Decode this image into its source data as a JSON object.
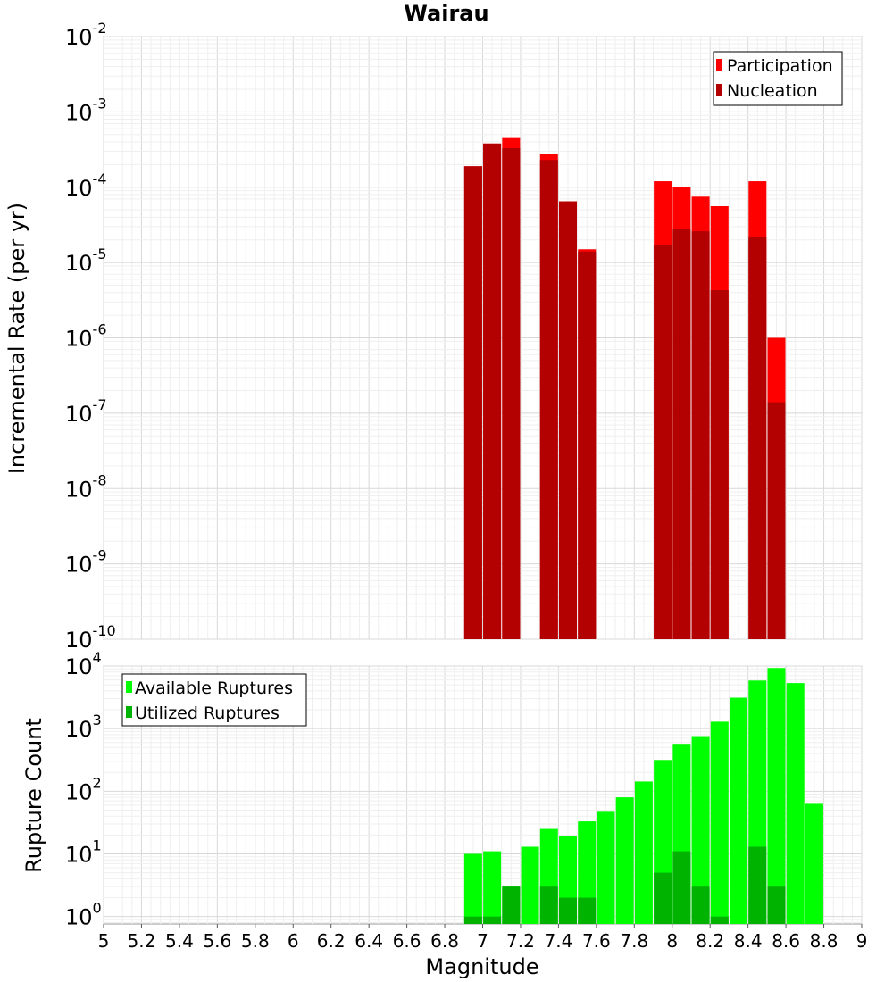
{
  "chart_data": [
    {
      "type": "bar",
      "title": "Wairau",
      "xlabel": "",
      "ylabel": "Incremental Rate (per yr)",
      "yscale": "log",
      "ylim": [
        1e-10,
        0.01
      ],
      "y_ticks": [
        {
          "base": "10",
          "exp": "-10"
        },
        {
          "base": "10",
          "exp": "-9"
        },
        {
          "base": "10",
          "exp": "-8"
        },
        {
          "base": "10",
          "exp": "-7"
        },
        {
          "base": "10",
          "exp": "-6"
        },
        {
          "base": "10",
          "exp": "-5"
        },
        {
          "base": "10",
          "exp": "-4"
        },
        {
          "base": "10",
          "exp": "-3"
        },
        {
          "base": "10",
          "exp": "-2"
        }
      ],
      "xlim": [
        5,
        9
      ],
      "grid": true,
      "legend_position": "top-right",
      "series": [
        {
          "name": "Participation",
          "color": "#ff0000",
          "x": [
            6.95,
            7.05,
            7.15,
            7.35,
            7.45,
            7.55,
            7.95,
            8.05,
            8.15,
            8.25,
            8.45,
            8.55
          ],
          "values": [
            0.00019,
            0.00038,
            0.00045,
            0.00028,
            6.5e-05,
            1.5e-05,
            0.00012,
            0.0001,
            7.5e-05,
            5.6e-05,
            0.00012,
            1e-06
          ]
        },
        {
          "name": "Nucleation",
          "color": "#b30000",
          "x": [
            6.95,
            7.05,
            7.15,
            7.35,
            7.45,
            7.55,
            7.95,
            8.05,
            8.15,
            8.25,
            8.45,
            8.55
          ],
          "values": [
            0.00019,
            0.00038,
            0.00033,
            0.00023,
            6.5e-05,
            1.4e-05,
            1.7e-05,
            2.8e-05,
            2.6e-05,
            4.3e-06,
            2.2e-05,
            1.4e-07
          ]
        }
      ]
    },
    {
      "type": "bar",
      "title": "",
      "xlabel": "Magnitude",
      "ylabel": "Rupture Count",
      "yscale": "log",
      "ylim": [
        0.76,
        10000
      ],
      "y_ticks": [
        {
          "base": "10",
          "exp": "0",
          "value": 1
        },
        {
          "base": "10",
          "exp": "1",
          "value": 10
        },
        {
          "base": "10",
          "exp": "2",
          "value": 100
        },
        {
          "base": "10",
          "exp": "3",
          "value": 1000
        },
        {
          "base": "10",
          "exp": "4",
          "value": 10000
        }
      ],
      "xlim": [
        5,
        9
      ],
      "x_ticks": [
        "5",
        "5.2",
        "5.4",
        "5.6",
        "5.8",
        "6",
        "6.2",
        "6.4",
        "6.6",
        "6.8",
        "7",
        "7.2",
        "7.4",
        "7.6",
        "7.8",
        "8",
        "8.2",
        "8.4",
        "8.6",
        "8.8",
        "9"
      ],
      "grid": true,
      "legend_position": "top-left",
      "series": [
        {
          "name": "Available Ruptures",
          "color": "#00ff00",
          "x": [
            6.95,
            7.05,
            7.15,
            7.25,
            7.35,
            7.45,
            7.55,
            7.65,
            7.75,
            7.85,
            7.95,
            8.05,
            8.15,
            8.25,
            8.35,
            8.45,
            8.55,
            8.65,
            8.75
          ],
          "values": [
            10,
            11,
            3,
            13,
            25,
            19,
            33,
            47,
            80,
            143,
            316,
            572,
            760,
            1290,
            3120,
            5860,
            9300,
            5340,
            63
          ]
        },
        {
          "name": "Utilized Ruptures",
          "color": "#00b300",
          "x": [
            6.95,
            7.05,
            7.15,
            7.35,
            7.45,
            7.55,
            7.95,
            8.05,
            8.15,
            8.25,
            8.45,
            8.55
          ],
          "values": [
            1,
            1,
            3,
            3,
            2,
            2,
            5,
            11,
            3,
            1,
            13,
            3
          ]
        }
      ]
    }
  ]
}
